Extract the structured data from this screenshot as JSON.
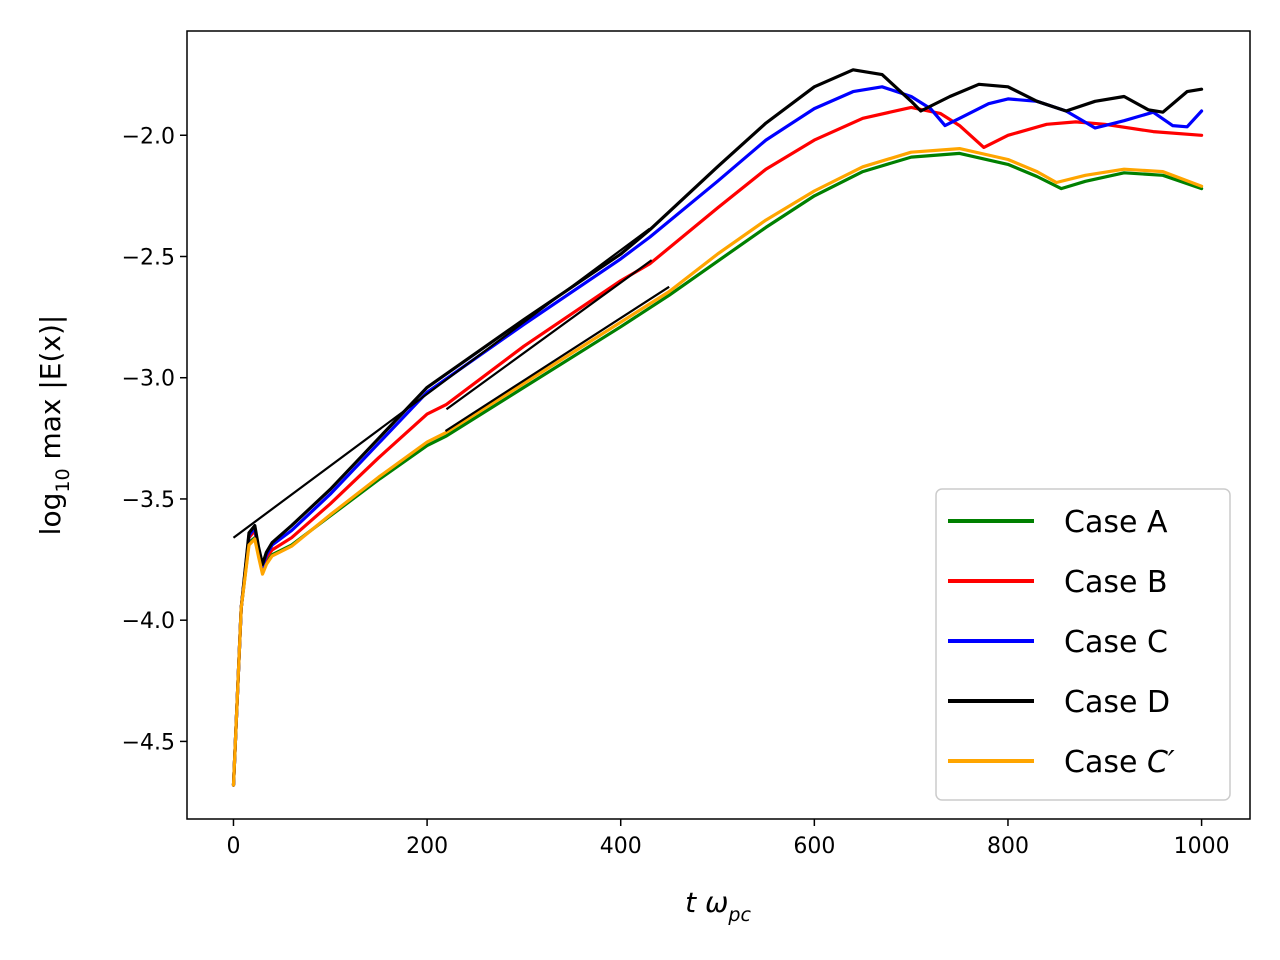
{
  "chart_data": {
    "type": "line",
    "xlabel": "t ω_pc",
    "xlabel_main": "t ω",
    "xlabel_sub": "pc",
    "ylabel": "log10 max |E(x)|",
    "ylabel_main": "log",
    "ylabel_sub": "10",
    "ylabel_rest": " max |E(x)|",
    "xlim": [
      -48,
      1050
    ],
    "ylim": [
      -4.82,
      -1.57
    ],
    "xticks": [
      0,
      200,
      400,
      600,
      800,
      1000
    ],
    "xtick_labels": [
      "0",
      "200",
      "400",
      "600",
      "800",
      "1000"
    ],
    "yticks": [
      -4.5,
      -4.0,
      -3.5,
      -3.0,
      -2.5,
      -2.0
    ],
    "ytick_labels": [
      "−4.5",
      "−4.0",
      "−3.5",
      "−3.0",
      "−2.5",
      "−2.0"
    ],
    "legend_position": "lower right",
    "colors": {
      "case_a": "#008000",
      "case_b": "#ff0000",
      "case_c": "#0000ff",
      "case_d": "#000000",
      "case_c_prime": "#ffa500"
    },
    "series": [
      {
        "key": "case_a",
        "name": "Case A",
        "color": "#008000",
        "x": [
          0,
          8,
          16,
          22,
          26,
          30,
          34,
          40,
          60,
          100,
          150,
          200,
          220,
          300,
          400,
          450,
          500,
          550,
          600,
          650,
          700,
          750,
          800,
          830,
          855,
          880,
          920,
          960,
          1000
        ],
        "y": [
          -4.68,
          -3.95,
          -3.68,
          -3.66,
          -3.73,
          -3.8,
          -3.76,
          -3.73,
          -3.69,
          -3.57,
          -3.42,
          -3.28,
          -3.24,
          -3.04,
          -2.79,
          -2.66,
          -2.52,
          -2.38,
          -2.25,
          -2.15,
          -2.09,
          -2.075,
          -2.12,
          -2.17,
          -2.22,
          -2.19,
          -2.155,
          -2.165,
          -2.22
        ]
      },
      {
        "key": "case_b",
        "name": "Case B",
        "color": "#ff0000",
        "x": [
          0,
          8,
          16,
          22,
          26,
          30,
          34,
          40,
          60,
          100,
          150,
          200,
          220,
          300,
          400,
          430,
          500,
          550,
          600,
          650,
          700,
          730,
          750,
          775,
          800,
          840,
          870,
          900,
          950,
          1000
        ],
        "y": [
          -4.68,
          -3.95,
          -3.66,
          -3.63,
          -3.72,
          -3.79,
          -3.74,
          -3.71,
          -3.66,
          -3.52,
          -3.33,
          -3.15,
          -3.11,
          -2.87,
          -2.6,
          -2.53,
          -2.3,
          -2.14,
          -2.02,
          -1.93,
          -1.885,
          -1.91,
          -1.96,
          -2.05,
          -2.0,
          -1.955,
          -1.945,
          -1.955,
          -1.985,
          -2.0
        ]
      },
      {
        "key": "case_c",
        "name": "Case C",
        "color": "#0000ff",
        "x": [
          0,
          8,
          16,
          22,
          26,
          30,
          34,
          40,
          60,
          100,
          150,
          200,
          300,
          400,
          430,
          500,
          550,
          600,
          640,
          670,
          700,
          720,
          735,
          750,
          780,
          800,
          830,
          860,
          890,
          920,
          950,
          970,
          985,
          1000
        ],
        "y": [
          -4.68,
          -3.95,
          -3.65,
          -3.62,
          -3.71,
          -3.78,
          -3.73,
          -3.69,
          -3.63,
          -3.48,
          -3.27,
          -3.06,
          -2.78,
          -2.51,
          -2.42,
          -2.19,
          -2.02,
          -1.89,
          -1.82,
          -1.8,
          -1.84,
          -1.89,
          -1.96,
          -1.93,
          -1.87,
          -1.85,
          -1.86,
          -1.9,
          -1.97,
          -1.94,
          -1.905,
          -1.96,
          -1.965,
          -1.9
        ]
      },
      {
        "key": "case_d",
        "name": "Case D",
        "color": "#000000",
        "x": [
          0,
          8,
          16,
          22,
          26,
          30,
          34,
          40,
          60,
          100,
          150,
          200,
          300,
          400,
          430,
          500,
          550,
          600,
          640,
          670,
          700,
          710,
          740,
          770,
          800,
          830,
          860,
          890,
          920,
          945,
          960,
          985,
          1000
        ],
        "y": [
          -4.68,
          -3.95,
          -3.64,
          -3.61,
          -3.7,
          -3.77,
          -3.72,
          -3.68,
          -3.61,
          -3.46,
          -3.25,
          -3.04,
          -2.76,
          -2.49,
          -2.39,
          -2.13,
          -1.95,
          -1.8,
          -1.73,
          -1.75,
          -1.86,
          -1.9,
          -1.84,
          -1.79,
          -1.8,
          -1.86,
          -1.9,
          -1.86,
          -1.84,
          -1.895,
          -1.905,
          -1.82,
          -1.81
        ]
      },
      {
        "key": "case_c_prime",
        "name": "Case C′",
        "legend_main": "Case ",
        "legend_italic": "C′",
        "color": "#ffa500",
        "x": [
          0,
          8,
          16,
          22,
          26,
          30,
          34,
          40,
          60,
          100,
          150,
          200,
          220,
          450,
          500,
          550,
          600,
          650,
          700,
          750,
          800,
          830,
          850,
          880,
          920,
          960,
          1000
        ],
        "y": [
          -4.68,
          -3.95,
          -3.69,
          -3.665,
          -3.74,
          -3.81,
          -3.77,
          -3.735,
          -3.695,
          -3.565,
          -3.41,
          -3.265,
          -3.225,
          -2.645,
          -2.49,
          -2.35,
          -2.23,
          -2.13,
          -2.07,
          -2.055,
          -2.1,
          -2.15,
          -2.195,
          -2.165,
          -2.14,
          -2.15,
          -2.21
        ]
      }
    ],
    "fit_segments": [
      {
        "name": "fit-d",
        "color": "#000000",
        "x": [
          0,
          430
        ],
        "y": [
          -3.66,
          -2.385
        ]
      },
      {
        "name": "fit-b",
        "color": "#000000",
        "x": [
          220,
          432
        ],
        "y": [
          -3.13,
          -2.515
        ]
      },
      {
        "name": "fit-c-prime",
        "color": "#000000",
        "x": [
          219,
          450
        ],
        "y": [
          -3.22,
          -2.625
        ]
      }
    ]
  }
}
